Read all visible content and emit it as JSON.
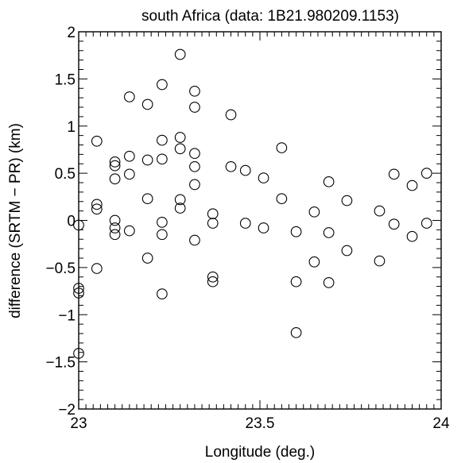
{
  "chart_data": {
    "type": "scatter",
    "title": "south Africa  (data: 1B21.980209.1153)",
    "xlabel": "Longitude (deg.)",
    "ylabel": "difference (SRTM − PR) (km)",
    "xlim": [
      23,
      24
    ],
    "ylim": [
      -2,
      2
    ],
    "x_major_ticks": [
      23,
      23.5,
      24
    ],
    "x_tick_labels": [
      "23",
      "23.5",
      "24"
    ],
    "y_major_ticks": [
      -2,
      -1.5,
      -1,
      -0.5,
      0,
      0.5,
      1,
      1.5,
      2
    ],
    "y_tick_labels": [
      "−2",
      "−1.5",
      "−1",
      "−0.5",
      "0",
      "0.5",
      "1",
      "1.5",
      "2"
    ],
    "marker": "open-circle",
    "grid": false,
    "legend": "none",
    "points": [
      {
        "x": 23.0,
        "y": -0.05
      },
      {
        "x": 23.0,
        "y": -0.72
      },
      {
        "x": 23.0,
        "y": -0.77
      },
      {
        "x": 23.0,
        "y": -1.41
      },
      {
        "x": 23.05,
        "y": 0.84
      },
      {
        "x": 23.05,
        "y": 0.17
      },
      {
        "x": 23.05,
        "y": 0.12
      },
      {
        "x": 23.05,
        "y": -0.51
      },
      {
        "x": 23.1,
        "y": 0.62
      },
      {
        "x": 23.1,
        "y": 0.58
      },
      {
        "x": 23.1,
        "y": 0.44
      },
      {
        "x": 23.1,
        "y": 0.0
      },
      {
        "x": 23.1,
        "y": -0.08
      },
      {
        "x": 23.1,
        "y": -0.15
      },
      {
        "x": 23.14,
        "y": 1.31
      },
      {
        "x": 23.14,
        "y": 0.68
      },
      {
        "x": 23.14,
        "y": 0.49
      },
      {
        "x": 23.14,
        "y": -0.11
      },
      {
        "x": 23.19,
        "y": 1.23
      },
      {
        "x": 23.19,
        "y": 0.64
      },
      {
        "x": 23.19,
        "y": 0.23
      },
      {
        "x": 23.19,
        "y": -0.4
      },
      {
        "x": 23.23,
        "y": 1.44
      },
      {
        "x": 23.23,
        "y": 0.85
      },
      {
        "x": 23.23,
        "y": 0.65
      },
      {
        "x": 23.23,
        "y": -0.02
      },
      {
        "x": 23.23,
        "y": -0.15
      },
      {
        "x": 23.23,
        "y": -0.78
      },
      {
        "x": 23.28,
        "y": 1.76
      },
      {
        "x": 23.28,
        "y": 0.88
      },
      {
        "x": 23.28,
        "y": 0.76
      },
      {
        "x": 23.28,
        "y": 0.22
      },
      {
        "x": 23.28,
        "y": 0.13
      },
      {
        "x": 23.32,
        "y": 1.37
      },
      {
        "x": 23.32,
        "y": 1.2
      },
      {
        "x": 23.32,
        "y": 0.71
      },
      {
        "x": 23.32,
        "y": 0.57
      },
      {
        "x": 23.32,
        "y": 0.38
      },
      {
        "x": 23.32,
        "y": -0.21
      },
      {
        "x": 23.37,
        "y": 0.07
      },
      {
        "x": 23.37,
        "y": -0.03
      },
      {
        "x": 23.37,
        "y": -0.6
      },
      {
        "x": 23.37,
        "y": -0.65
      },
      {
        "x": 23.42,
        "y": 1.12
      },
      {
        "x": 23.42,
        "y": 0.57
      },
      {
        "x": 23.46,
        "y": 0.53
      },
      {
        "x": 23.46,
        "y": -0.03
      },
      {
        "x": 23.51,
        "y": 0.45
      },
      {
        "x": 23.51,
        "y": -0.08
      },
      {
        "x": 23.56,
        "y": 0.77
      },
      {
        "x": 23.56,
        "y": 0.23
      },
      {
        "x": 23.6,
        "y": -0.12
      },
      {
        "x": 23.6,
        "y": -0.65
      },
      {
        "x": 23.6,
        "y": -1.19
      },
      {
        "x": 23.65,
        "y": 0.09
      },
      {
        "x": 23.65,
        "y": -0.44
      },
      {
        "x": 23.69,
        "y": 0.41
      },
      {
        "x": 23.69,
        "y": -0.13
      },
      {
        "x": 23.69,
        "y": -0.66
      },
      {
        "x": 23.74,
        "y": 0.21
      },
      {
        "x": 23.74,
        "y": -0.32
      },
      {
        "x": 23.83,
        "y": 0.1
      },
      {
        "x": 23.83,
        "y": -0.43
      },
      {
        "x": 23.87,
        "y": 0.49
      },
      {
        "x": 23.87,
        "y": -0.04
      },
      {
        "x": 23.92,
        "y": 0.37
      },
      {
        "x": 23.92,
        "y": -0.17
      },
      {
        "x": 23.96,
        "y": 0.5
      },
      {
        "x": 23.96,
        "y": -0.03
      }
    ]
  }
}
